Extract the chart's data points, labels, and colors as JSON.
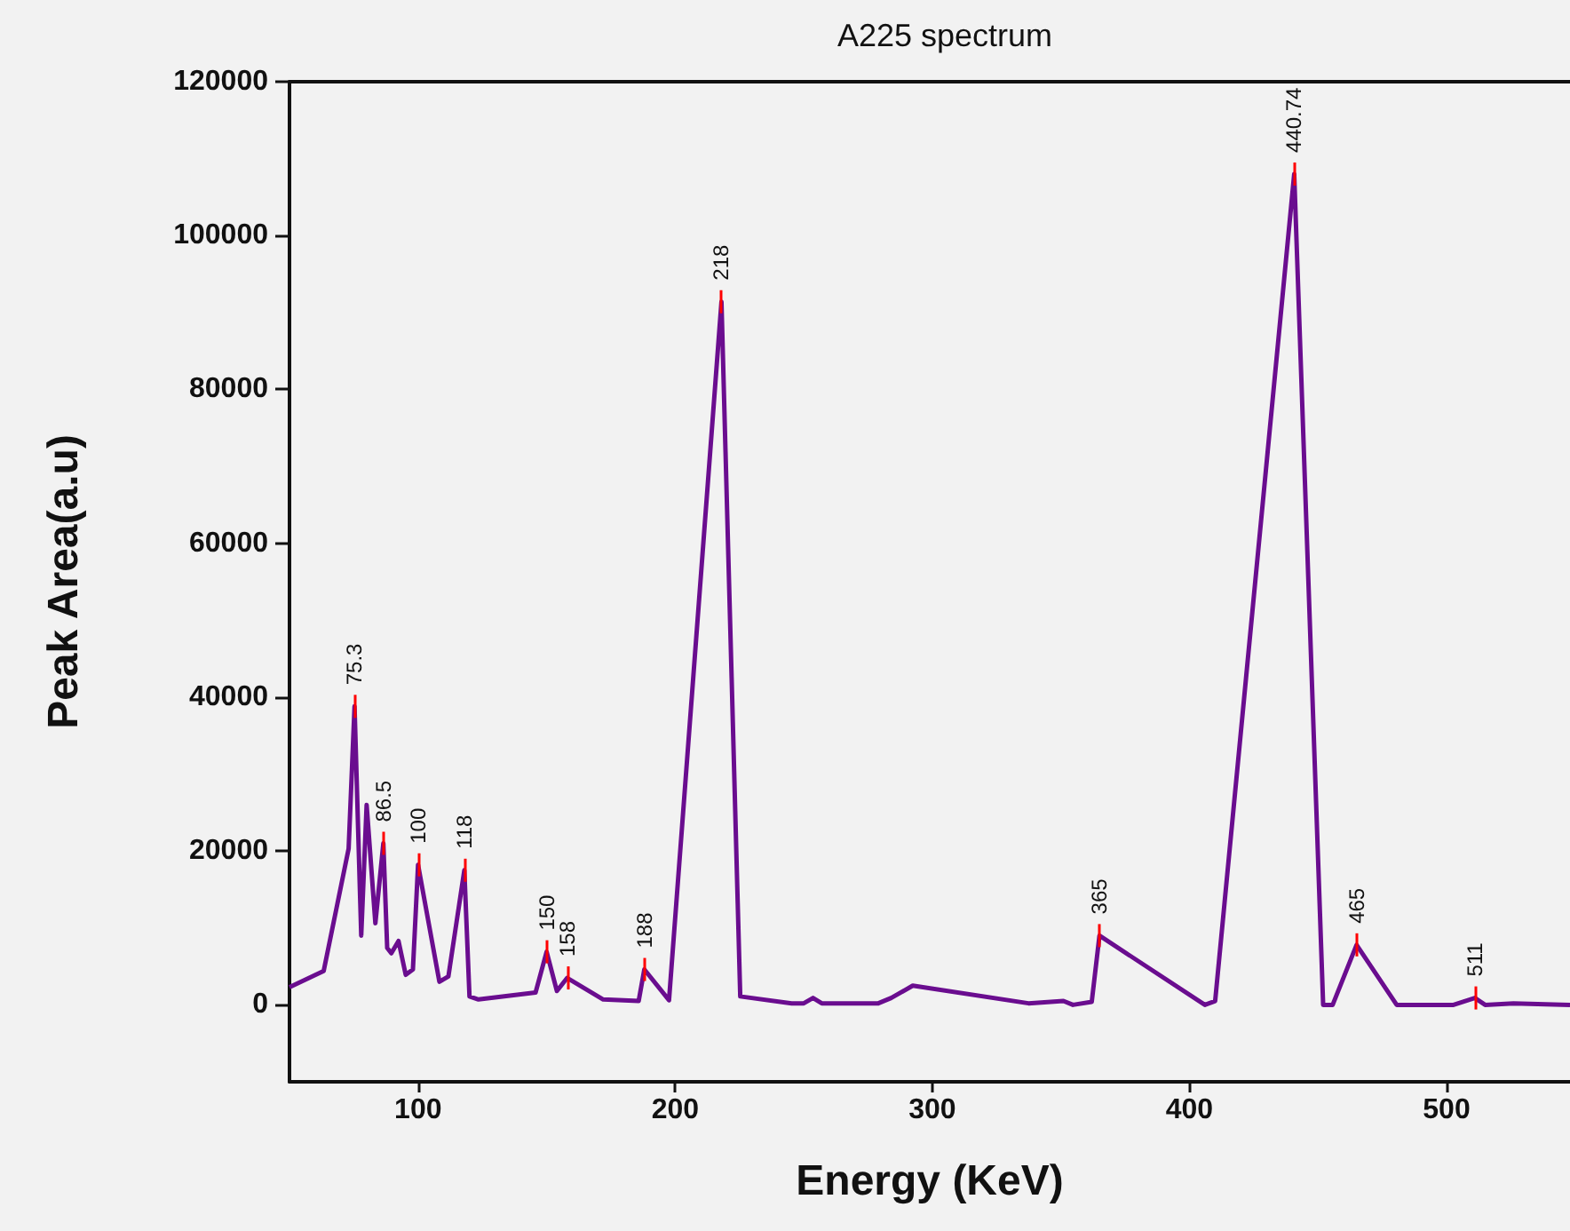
{
  "chart_data": {
    "type": "line",
    "title": "A225 spectrum",
    "xlabel": "Energy (KeV)",
    "ylabel": "Peak Area(a.u)",
    "x": [
      50,
      63.3,
      73,
      75.3,
      77.9,
      80,
      83.4,
      86.5,
      88,
      89.6,
      92.4,
      95.2,
      98,
      100,
      108.3,
      111.8,
      118,
      120,
      123.5,
      145.7,
      150,
      154,
      158,
      172,
      185.8,
      188,
      197.6,
      218,
      225.3,
      245.3,
      250,
      253.6,
      257,
      279,
      284,
      292.4,
      337.4,
      351,
      354.7,
      362,
      365,
      406,
      410,
      440.74,
      452,
      455.7,
      465,
      480.6,
      502.7,
      511,
      515,
      526,
      548
    ],
    "series": [
      {
        "color": "#6a0d8f",
        "values": [
          2300,
          4400,
          20300,
          38800,
          9000,
          26000,
          10600,
          21000,
          7400,
          6700,
          8300,
          3900,
          4600,
          18200,
          3000,
          3700,
          17500,
          1100,
          700,
          1600,
          6900,
          1800,
          3500,
          700,
          500,
          4600,
          600,
          91400,
          1100,
          200,
          200,
          900,
          200,
          200,
          900,
          2500,
          200,
          500,
          0,
          400,
          9000,
          0,
          500,
          108000,
          0,
          0,
          7800,
          0,
          0,
          900,
          0,
          200,
          0
        ]
      }
    ],
    "annotations": [
      {
        "text": "75.3",
        "x": 75.3,
        "y": 38800
      },
      {
        "text": "86.5",
        "x": 86.5,
        "y": 21000
      },
      {
        "text": "100",
        "x": 100,
        "y": 18200
      },
      {
        "text": "118",
        "x": 118,
        "y": 17500
      },
      {
        "text": "150",
        "x": 150,
        "y": 6900
      },
      {
        "text": "158",
        "x": 158,
        "y": 3500
      },
      {
        "text": "188",
        "x": 188,
        "y": 4600
      },
      {
        "text": "218",
        "x": 218,
        "y": 91400
      },
      {
        "text": "365",
        "x": 365,
        "y": 9000
      },
      {
        "text": "440.74",
        "x": 440.74,
        "y": 108000
      },
      {
        "text": "465",
        "x": 465,
        "y": 7800
      },
      {
        "text": "511",
        "x": 511,
        "y": 900
      }
    ],
    "xlim": [
      50,
      548
    ],
    "xticks": [
      100,
      200,
      300,
      400,
      500
    ],
    "ylim": [
      -10000,
      120000
    ],
    "yticks": [
      0,
      20000,
      40000,
      60000,
      80000,
      100000,
      120000
    ],
    "grid": false,
    "marker": "none",
    "line_style": "solid"
  }
}
